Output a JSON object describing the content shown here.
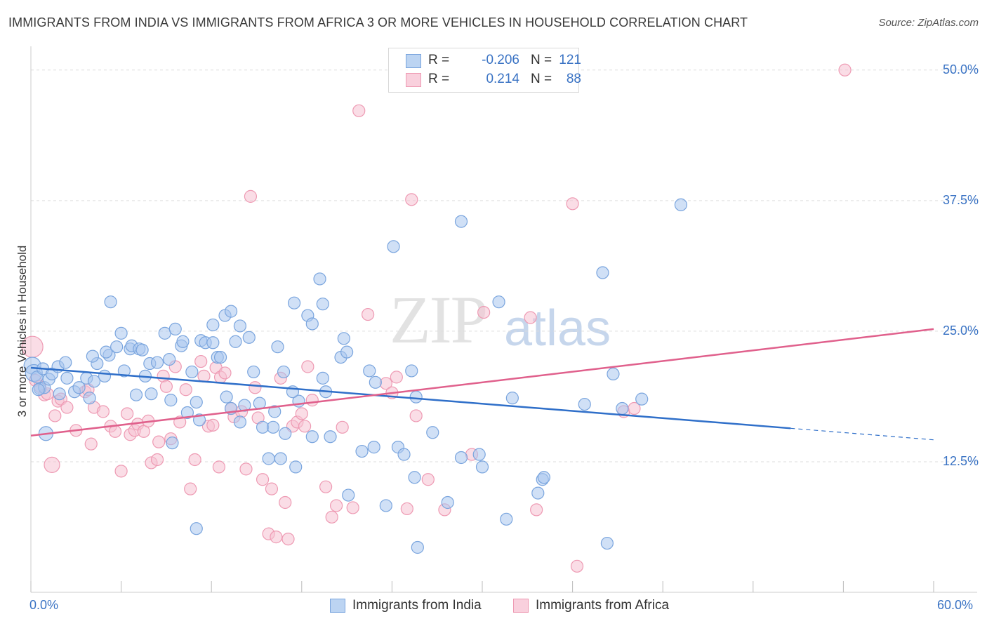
{
  "header": {
    "title": "IMMIGRANTS FROM INDIA VS IMMIGRANTS FROM AFRICA 3 OR MORE VEHICLES IN HOUSEHOLD CORRELATION CHART",
    "source": "Source: ZipAtlas.com"
  },
  "watermark": {
    "zip": "ZIP",
    "atlas": "atlas"
  },
  "stats": {
    "india": {
      "r_label": "R =",
      "r_value": "-0.206",
      "n_label": "N =",
      "n_value": "121"
    },
    "africa": {
      "r_label": "R =",
      "r_value": "0.214",
      "n_label": "N =",
      "n_value": "88"
    }
  },
  "legend": {
    "india": "Immigrants from India",
    "africa": "Immigrants from Africa"
  },
  "colors": {
    "india_fill": "#a9c7ee",
    "india_stroke": "#7aa5de",
    "india_line": "#2f6fc9",
    "africa_fill": "#f6c1d1",
    "africa_stroke": "#ee9ab3",
    "africa_line": "#e0608c",
    "tick_text": "#3a73c4",
    "grid": "#dddddd"
  },
  "chart_data": {
    "type": "scatter",
    "title": "IMMIGRANTS FROM INDIA VS IMMIGRANTS FROM AFRICA 3 OR MORE VEHICLES IN HOUSEHOLD CORRELATION CHART",
    "xlabel": "",
    "ylabel": "3 or more Vehicles in Household",
    "xlim": [
      0,
      60
    ],
    "ylim": [
      0,
      52
    ],
    "x_tick_labels": [
      "0.0%",
      "60.0%"
    ],
    "y_ticks": [
      12.5,
      25.0,
      37.5,
      50.0
    ],
    "y_tick_labels": [
      "12.5%",
      "25.0%",
      "37.5%",
      "50.0%"
    ],
    "grid": true,
    "legend_position": "bottom-center",
    "series": [
      {
        "name": "Immigrants from India",
        "trend": {
          "x": [
            0,
            50.5,
            60
          ],
          "y": [
            21.5,
            15.7,
            14.6
          ],
          "dashed_from_x": 50.5
        },
        "points": [
          [
            0.1,
            21.7
          ],
          [
            0.2,
            21.0
          ],
          [
            0.6,
            19.5
          ],
          [
            0.4,
            20.6
          ],
          [
            0.9,
            19.6
          ],
          [
            0.8,
            21.4
          ],
          [
            1.2,
            20.4
          ],
          [
            1.4,
            20.9
          ],
          [
            0.5,
            19.4
          ],
          [
            1.0,
            15.2
          ],
          [
            1.8,
            21.6
          ],
          [
            1.9,
            19.0
          ],
          [
            2.3,
            22.0
          ],
          [
            2.4,
            20.5
          ],
          [
            2.9,
            19.2
          ],
          [
            3.2,
            19.6
          ],
          [
            3.7,
            20.5
          ],
          [
            3.9,
            18.6
          ],
          [
            4.4,
            21.9
          ],
          [
            4.2,
            20.2
          ],
          [
            4.1,
            22.6
          ],
          [
            4.9,
            20.7
          ],
          [
            5.2,
            22.7
          ],
          [
            5.0,
            23.0
          ],
          [
            5.3,
            27.8
          ],
          [
            5.7,
            23.5
          ],
          [
            6.0,
            24.8
          ],
          [
            6.2,
            21.2
          ],
          [
            6.6,
            23.3
          ],
          [
            6.7,
            23.6
          ],
          [
            7.0,
            18.9
          ],
          [
            7.2,
            23.3
          ],
          [
            7.4,
            23.2
          ],
          [
            7.6,
            20.7
          ],
          [
            7.9,
            21.9
          ],
          [
            8.0,
            19.0
          ],
          [
            8.4,
            22.0
          ],
          [
            8.9,
            24.8
          ],
          [
            9.2,
            22.3
          ],
          [
            9.3,
            18.4
          ],
          [
            9.6,
            25.2
          ],
          [
            9.4,
            14.3
          ],
          [
            10.0,
            23.6
          ],
          [
            10.1,
            24.0
          ],
          [
            10.4,
            17.2
          ],
          [
            10.7,
            21.1
          ],
          [
            11.0,
            18.2
          ],
          [
            11.3,
            24.1
          ],
          [
            11.6,
            23.9
          ],
          [
            11.0,
            6.1
          ],
          [
            12.1,
            23.9
          ],
          [
            11.2,
            16.5
          ],
          [
            12.4,
            22.5
          ],
          [
            12.1,
            25.6
          ],
          [
            12.6,
            22.5
          ],
          [
            12.9,
            26.5
          ],
          [
            13.0,
            18.7
          ],
          [
            13.3,
            26.9
          ],
          [
            13.6,
            24.0
          ],
          [
            13.9,
            25.5
          ],
          [
            13.3,
            17.6
          ],
          [
            14.2,
            17.9
          ],
          [
            14.5,
            24.4
          ],
          [
            13.9,
            16.3
          ],
          [
            14.8,
            21.1
          ],
          [
            15.2,
            18.1
          ],
          [
            15.4,
            15.8
          ],
          [
            15.8,
            12.8
          ],
          [
            16.1,
            15.8
          ],
          [
            16.4,
            23.5
          ],
          [
            16.2,
            17.3
          ],
          [
            16.8,
            21.1
          ],
          [
            16.6,
            12.8
          ],
          [
            16.9,
            15.2
          ],
          [
            17.5,
            27.7
          ],
          [
            17.6,
            12.0
          ],
          [
            17.8,
            18.3
          ],
          [
            17.4,
            19.2
          ],
          [
            18.4,
            26.5
          ],
          [
            18.7,
            14.9
          ],
          [
            18.7,
            25.7
          ],
          [
            19.2,
            30.0
          ],
          [
            19.4,
            20.5
          ],
          [
            19.6,
            19.2
          ],
          [
            19.4,
            27.6
          ],
          [
            19.9,
            14.9
          ],
          [
            20.6,
            22.5
          ],
          [
            20.8,
            24.3
          ],
          [
            21.0,
            23.0
          ],
          [
            21.1,
            9.3
          ],
          [
            22.0,
            13.5
          ],
          [
            22.9,
            20.1
          ],
          [
            22.5,
            21.2
          ],
          [
            22.8,
            13.9
          ],
          [
            23.6,
            8.3
          ],
          [
            24.4,
            13.9
          ],
          [
            24.1,
            33.1
          ],
          [
            24.8,
            13.2
          ],
          [
            25.3,
            21.2
          ],
          [
            25.6,
            18.7
          ],
          [
            25.5,
            11.0
          ],
          [
            25.7,
            4.3
          ],
          [
            26.7,
            15.3
          ],
          [
            27.7,
            8.6
          ],
          [
            28.6,
            35.5
          ],
          [
            28.6,
            12.9
          ],
          [
            29.8,
            13.2
          ],
          [
            30.0,
            12.0
          ],
          [
            31.1,
            27.8
          ],
          [
            32.0,
            18.6
          ],
          [
            31.6,
            7.0
          ],
          [
            33.7,
            9.5
          ],
          [
            34.0,
            10.8
          ],
          [
            34.1,
            11.0
          ],
          [
            36.8,
            18.0
          ],
          [
            38.0,
            30.6
          ],
          [
            38.7,
            20.9
          ],
          [
            38.3,
            4.7
          ],
          [
            39.3,
            17.6
          ],
          [
            40.6,
            18.5
          ],
          [
            43.2,
            37.1
          ]
        ]
      },
      {
        "name": "Immigrants from Africa",
        "trend": {
          "x": [
            0,
            60
          ],
          "y": [
            15.0,
            25.2
          ]
        },
        "points": [
          [
            0.1,
            23.5
          ],
          [
            0.3,
            20.3
          ],
          [
            0.6,
            19.7
          ],
          [
            0.9,
            18.9
          ],
          [
            1.1,
            19.0
          ],
          [
            1.4,
            12.2
          ],
          [
            1.6,
            16.9
          ],
          [
            1.8,
            18.3
          ],
          [
            2.0,
            18.5
          ],
          [
            2.4,
            17.7
          ],
          [
            3.0,
            15.5
          ],
          [
            3.6,
            19.2
          ],
          [
            3.8,
            19.4
          ],
          [
            4.2,
            17.7
          ],
          [
            4.0,
            14.2
          ],
          [
            4.8,
            17.3
          ],
          [
            5.3,
            15.9
          ],
          [
            5.6,
            15.4
          ],
          [
            6.0,
            11.6
          ],
          [
            6.4,
            17.1
          ],
          [
            6.6,
            15.1
          ],
          [
            6.9,
            15.5
          ],
          [
            7.1,
            16.1
          ],
          [
            7.5,
            15.4
          ],
          [
            7.8,
            16.4
          ],
          [
            8.0,
            12.4
          ],
          [
            8.4,
            12.7
          ],
          [
            8.5,
            14.4
          ],
          [
            8.8,
            20.7
          ],
          [
            9.0,
            19.7
          ],
          [
            9.3,
            14.7
          ],
          [
            9.6,
            21.6
          ],
          [
            9.9,
            16.3
          ],
          [
            10.3,
            19.4
          ],
          [
            10.6,
            9.9
          ],
          [
            10.9,
            12.7
          ],
          [
            11.3,
            22.1
          ],
          [
            11.5,
            20.7
          ],
          [
            11.8,
            15.9
          ],
          [
            12.1,
            16.0
          ],
          [
            12.3,
            21.5
          ],
          [
            12.6,
            20.6
          ],
          [
            12.9,
            21.0
          ],
          [
            12.5,
            12.0
          ],
          [
            13.3,
            17.6
          ],
          [
            13.5,
            16.8
          ],
          [
            14.0,
            17.3
          ],
          [
            14.3,
            11.8
          ],
          [
            14.6,
            37.9
          ],
          [
            14.9,
            19.6
          ],
          [
            15.1,
            16.7
          ],
          [
            15.4,
            10.8
          ],
          [
            15.8,
            5.6
          ],
          [
            16.0,
            9.9
          ],
          [
            16.3,
            5.3
          ],
          [
            16.6,
            20.5
          ],
          [
            16.9,
            8.6
          ],
          [
            17.1,
            5.1
          ],
          [
            17.4,
            15.9
          ],
          [
            17.7,
            16.3
          ],
          [
            18.0,
            17.1
          ],
          [
            18.2,
            15.9
          ],
          [
            18.4,
            21.6
          ],
          [
            18.7,
            18.4
          ],
          [
            19.6,
            10.1
          ],
          [
            20.0,
            7.2
          ],
          [
            20.3,
            8.3
          ],
          [
            20.7,
            15.8
          ],
          [
            21.4,
            8.1
          ],
          [
            22.4,
            26.6
          ],
          [
            21.8,
            46.1
          ],
          [
            23.6,
            20.0
          ],
          [
            24.0,
            19.1
          ],
          [
            24.3,
            20.6
          ],
          [
            25.0,
            8.0
          ],
          [
            25.3,
            37.6
          ],
          [
            25.6,
            16.9
          ],
          [
            26.4,
            10.8
          ],
          [
            27.5,
            7.9
          ],
          [
            29.3,
            13.2
          ],
          [
            30.1,
            26.8
          ],
          [
            33.6,
            7.9
          ],
          [
            33.2,
            26.3
          ],
          [
            36.0,
            37.2
          ],
          [
            36.3,
            2.5
          ],
          [
            39.4,
            17.3
          ],
          [
            40.1,
            17.6
          ],
          [
            54.1,
            50.0
          ]
        ]
      }
    ]
  }
}
